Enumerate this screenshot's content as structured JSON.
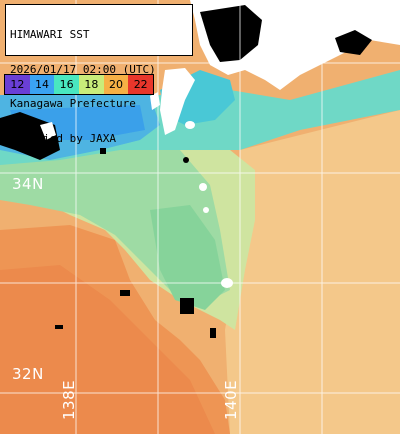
{
  "header": {
    "line1": "HIMAWARI SST",
    "line2": "2026/01/17 02:00 (UTC)",
    "line3": "Kanagawa Prefecture",
    "line4": "supplied by JAXA"
  },
  "legend": {
    "items": [
      {
        "label": "12",
        "color": "#6a3fd6"
      },
      {
        "label": "14",
        "color": "#3aa3f2"
      },
      {
        "label": "16",
        "color": "#49e7c0"
      },
      {
        "label": "18",
        "color": "#c9ec7a"
      },
      {
        "label": "20",
        "color": "#f6b045"
      },
      {
        "label": "22",
        "color": "#e8362b"
      }
    ]
  },
  "grid": {
    "lat_labels": [
      "34N",
      "32N"
    ],
    "lon_labels": [
      "138E",
      "140E"
    ]
  },
  "colors": {
    "cold_blue": "#3aa8ea",
    "cyan": "#55dcc6",
    "green": "#8ee0a0",
    "yellow_green": "#cfe89a",
    "light_orange": "#f4cc88",
    "orange": "#f2a45c",
    "deep_orange": "#ec8a4c",
    "land": "#ffffff",
    "cloud": "#000000",
    "grid": "#ffffff"
  }
}
